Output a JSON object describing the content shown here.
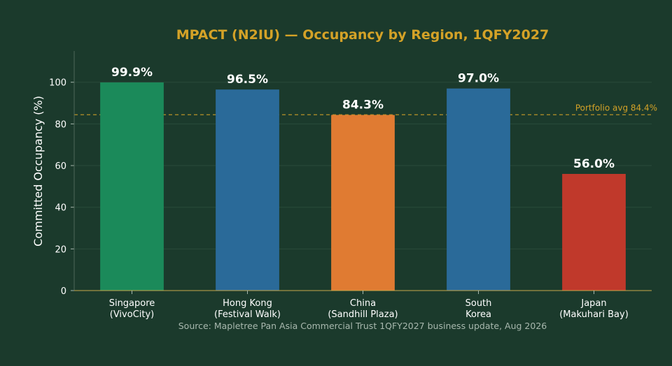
{
  "chart_data": {
    "type": "bar",
    "title": "MPACT (N2IU) — Occupancy by Region, 1QFY2027",
    "ylabel": "Committed Occupancy (%)",
    "xlabel": "",
    "ylim": [
      0,
      115
    ],
    "yticks": [
      0,
      20,
      40,
      60,
      80,
      100
    ],
    "grid": true,
    "categories": [
      [
        "Singapore",
        "(VivoCity)"
      ],
      [
        "Hong Kong",
        "(Festival Walk)"
      ],
      [
        "China",
        "(Sandhill Plaza)"
      ],
      [
        "South",
        "Korea"
      ],
      [
        "Japan",
        "(Makuhari Bay)"
      ]
    ],
    "values": [
      99.9,
      96.5,
      84.3,
      97.0,
      56.0
    ],
    "value_labels": [
      "99.9%",
      "96.5%",
      "84.3%",
      "97.0%",
      "56.0%"
    ],
    "bar_colors": [
      "#1b8a5a",
      "#2a6a99",
      "#e07b32",
      "#2a6a99",
      "#c0392b"
    ],
    "reference_line": {
      "value": 84.4,
      "label": "Portfolio avg 84.4%",
      "color": "#d4a227"
    },
    "source": "Source: Mapletree Pan Asia Commercial Trust 1QFY2027 business update, Aug 2026",
    "colors": {
      "background": "#1b3a2c",
      "title": "#d4a227",
      "text": "#ffffff",
      "muted": "#a8b8ae",
      "grid": "#2a4a3a",
      "axis": "#c9a84a"
    }
  }
}
